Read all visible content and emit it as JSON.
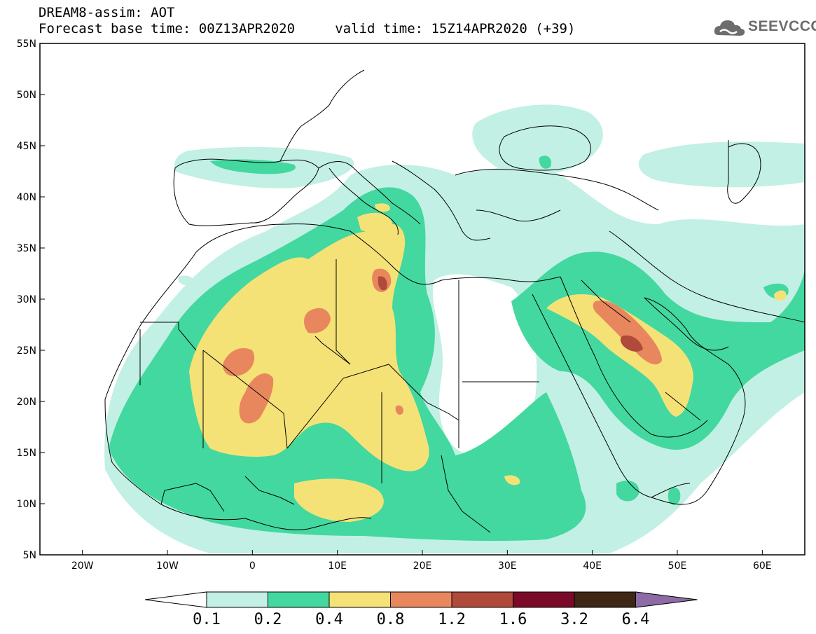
{
  "titles": {
    "line1": "DREAM8-assim: AOT",
    "line2": "Forecast base time: 00Z13APR2020     valid time: 15Z14APR2020 (+39)"
  },
  "logo": {
    "text": "SEEVCCC",
    "icon": "cloud-icon"
  },
  "map": {
    "lon_range": [
      -25,
      65
    ],
    "lat_range": [
      5,
      55
    ],
    "lat_ticks": [
      {
        "value": 55,
        "label": "55N"
      },
      {
        "value": 50,
        "label": "50N"
      },
      {
        "value": 45,
        "label": "45N"
      },
      {
        "value": 40,
        "label": "40N"
      },
      {
        "value": 35,
        "label": "35N"
      },
      {
        "value": 30,
        "label": "30N"
      },
      {
        "value": 25,
        "label": "25N"
      },
      {
        "value": 20,
        "label": "20N"
      },
      {
        "value": 15,
        "label": "15N"
      },
      {
        "value": 10,
        "label": "10N"
      },
      {
        "value": 5,
        "label": "5N"
      }
    ],
    "lon_ticks": [
      {
        "value": -20,
        "label": "20W"
      },
      {
        "value": -10,
        "label": "10W"
      },
      {
        "value": 0,
        "label": "0"
      },
      {
        "value": 10,
        "label": "10E"
      },
      {
        "value": 20,
        "label": "20E"
      },
      {
        "value": 30,
        "label": "30E"
      },
      {
        "value": 40,
        "label": "40E"
      },
      {
        "value": 50,
        "label": "50E"
      },
      {
        "value": 60,
        "label": "60E"
      }
    ]
  },
  "colorbar": {
    "labels": [
      "0.1",
      "0.2",
      "0.4",
      "0.8",
      "1.2",
      "1.6",
      "3.2",
      "6.4"
    ],
    "colors": [
      "#ffffff",
      "#c2f0e4",
      "#43d8a0",
      "#f5e277",
      "#e8875e",
      "#b04a3a",
      "#7a0a28",
      "#3e2714",
      "#8e6aa6"
    ]
  },
  "field_colors": {
    "level1": "#c2f0e4",
    "level2": "#43d8a0",
    "level3": "#f5e277",
    "level4": "#e8875e",
    "level5": "#b04a3a",
    "level6": "#8a2a2a"
  }
}
